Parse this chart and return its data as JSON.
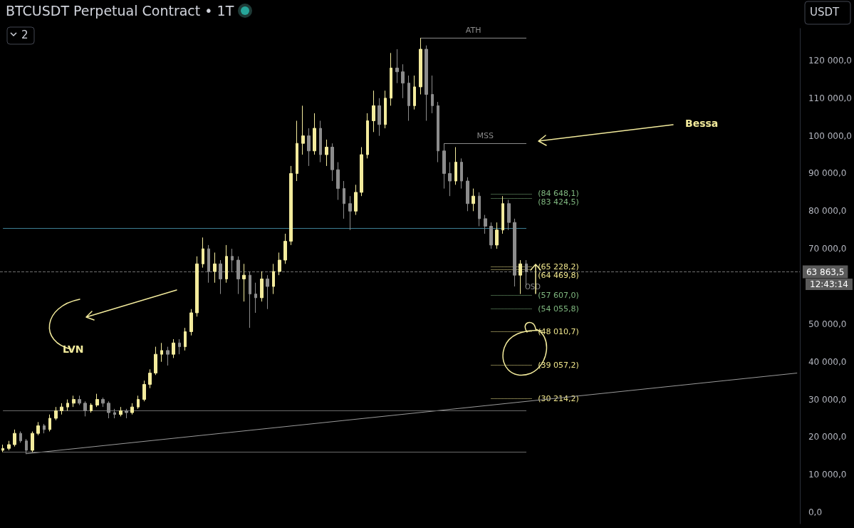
{
  "chart_data": {
    "type": "candlestick",
    "title": "BTCUSDT Perpetual Contract • 1T",
    "categories": [
      null,
      null,
      null,
      null,
      null,
      null,
      null,
      null,
      null,
      null,
      null,
      null,
      null,
      null,
      null,
      null,
      null,
      null,
      null,
      null,
      null,
      null,
      null,
      null,
      null,
      null,
      null,
      null,
      null,
      null,
      null,
      null,
      null,
      null,
      null,
      null,
      null,
      null,
      null,
      null,
      null,
      null,
      null,
      null,
      null,
      null,
      null,
      null,
      null,
      null,
      null,
      null,
      null,
      null,
      null,
      null,
      null,
      null,
      null,
      null,
      null,
      null,
      null,
      null,
      null,
      null,
      null,
      null,
      null,
      null,
      null,
      null,
      null,
      null,
      null,
      null,
      null,
      null,
      null,
      null,
      null,
      null,
      null,
      null,
      null,
      null,
      null,
      null,
      null,
      null,
      null,
      null,
      null,
      null,
      null,
      null,
      null,
      null,
      null,
      null,
      null,
      null,
      null,
      null,
      null,
      null,
      null,
      null,
      null,
      null,
      null,
      null,
      null,
      null,
      null,
      null,
      null,
      null,
      null,
      null,
      null,
      null,
      null,
      null,
      null,
      null,
      null,
      null,
      null,
      null,
      null,
      null,
      null,
      null,
      null,
      null
    ],
    "ohlc": [
      [
        16500,
        18000,
        16000,
        17000
      ],
      [
        17000,
        19000,
        16500,
        18000
      ],
      [
        18000,
        22000,
        17500,
        21000
      ],
      [
        21000,
        21500,
        18500,
        19000
      ],
      [
        19000,
        19500,
        15500,
        16500
      ],
      [
        16500,
        21500,
        16000,
        21000
      ],
      [
        21000,
        24000,
        20500,
        23000
      ],
      [
        23000,
        23500,
        21000,
        22000
      ],
      [
        22000,
        26000,
        21500,
        25000
      ],
      [
        25000,
        28000,
        24500,
        27000
      ],
      [
        27000,
        29000,
        26000,
        28000
      ],
      [
        28000,
        30000,
        27000,
        29000
      ],
      [
        29000,
        31000,
        28000,
        30000
      ],
      [
        30000,
        31000,
        28500,
        29000
      ],
      [
        29000,
        29500,
        25500,
        27000
      ],
      [
        27000,
        29000,
        26500,
        28500
      ],
      [
        28500,
        31500,
        28000,
        30000
      ],
      [
        30000,
        30500,
        28000,
        29000
      ],
      [
        29000,
        29500,
        25000,
        26500
      ],
      [
        26500,
        27500,
        25000,
        26000
      ],
      [
        26000,
        28000,
        25500,
        27000
      ],
      [
        27000,
        27500,
        25000,
        26500
      ],
      [
        26500,
        29000,
        26000,
        28000
      ],
      [
        28000,
        31000,
        27500,
        30000
      ],
      [
        30000,
        35000,
        29500,
        34000
      ],
      [
        34000,
        38000,
        33000,
        37000
      ],
      [
        37000,
        44000,
        36500,
        42000
      ],
      [
        42000,
        45000,
        40000,
        43000
      ],
      [
        43000,
        44000,
        39000,
        42000
      ],
      [
        42000,
        46000,
        41000,
        45000
      ],
      [
        45000,
        46000,
        42000,
        44000
      ],
      [
        44000,
        49000,
        43000,
        48000
      ],
      [
        48000,
        54000,
        47000,
        53000
      ],
      [
        53000,
        68000,
        52000,
        66000
      ],
      [
        66000,
        73000,
        65000,
        70000
      ],
      [
        70000,
        71000,
        61000,
        64000
      ],
      [
        64000,
        69000,
        61000,
        66000
      ],
      [
        66000,
        67000,
        58000,
        62000
      ],
      [
        62000,
        71000,
        61000,
        68000
      ],
      [
        68000,
        70000,
        64000,
        67000
      ],
      [
        67000,
        68000,
        58000,
        62000
      ],
      [
        62000,
        66000,
        56000,
        63000
      ],
      [
        63000,
        64000,
        49000,
        58000
      ],
      [
        58000,
        61000,
        53000,
        57000
      ],
      [
        57000,
        64000,
        56000,
        62000
      ],
      [
        62000,
        63000,
        54000,
        60000
      ],
      [
        60000,
        66000,
        58000,
        64000
      ],
      [
        64000,
        69000,
        63000,
        67000
      ],
      [
        67000,
        74000,
        66000,
        72000
      ],
      [
        72000,
        92000,
        71000,
        90000
      ],
      [
        90000,
        104000,
        88000,
        98000
      ],
      [
        98000,
        108000,
        95000,
        100000
      ],
      [
        100000,
        102000,
        92000,
        96000
      ],
      [
        96000,
        106000,
        95000,
        102000
      ],
      [
        102000,
        104000,
        93000,
        95000
      ],
      [
        95000,
        99000,
        92000,
        97000
      ],
      [
        97000,
        98000,
        88000,
        91000
      ],
      [
        91000,
        93000,
        83000,
        86000
      ],
      [
        86000,
        88000,
        78000,
        82000
      ],
      [
        82000,
        84000,
        75000,
        80000
      ],
      [
        80000,
        87000,
        79000,
        85000
      ],
      [
        85000,
        97000,
        84000,
        95000
      ],
      [
        95000,
        106000,
        94000,
        104000
      ],
      [
        104000,
        112000,
        101000,
        108000
      ],
      [
        108000,
        110000,
        100000,
        103000
      ],
      [
        103000,
        112000,
        102000,
        110000
      ],
      [
        110000,
        122000,
        108000,
        118000
      ],
      [
        118000,
        123000,
        114000,
        117000
      ],
      [
        117000,
        119000,
        110000,
        114000
      ],
      [
        114000,
        116000,
        104000,
        108000
      ],
      [
        108000,
        116000,
        107000,
        113000
      ],
      [
        113000,
        126000,
        111000,
        123000
      ],
      [
        123000,
        124000,
        104000,
        111000
      ],
      [
        111000,
        116000,
        106000,
        108000
      ],
      [
        108000,
        109000,
        93000,
        96000
      ],
      [
        96000,
        98000,
        86000,
        90000
      ],
      [
        90000,
        93000,
        84000,
        88000
      ],
      [
        88000,
        97000,
        87000,
        93000
      ],
      [
        93000,
        94000,
        86000,
        88000
      ],
      [
        88000,
        89000,
        80000,
        82000
      ],
      [
        82000,
        86000,
        80000,
        84000
      ],
      [
        84000,
        85000,
        76000,
        78000
      ],
      [
        78000,
        79000,
        74000,
        76000
      ],
      [
        76000,
        77000,
        70000,
        71000
      ],
      [
        71000,
        77000,
        70000,
        75000
      ],
      [
        75000,
        84000,
        74000,
        82000
      ],
      [
        82000,
        83000,
        75000,
        77000
      ],
      [
        77000,
        78000,
        60000,
        63000
      ],
      [
        63000,
        67000,
        58000,
        66000
      ],
      [
        66000,
        67000,
        60000,
        63900
      ],
      null,
      null,
      null,
      null,
      null,
      null,
      null,
      null,
      null,
      null,
      null,
      null,
      null,
      null,
      null,
      null,
      null,
      null,
      null,
      null,
      null,
      null,
      null,
      null,
      null,
      null,
      null,
      null,
      null,
      null,
      null,
      null,
      null,
      null,
      null,
      null,
      null,
      null,
      null,
      null,
      null,
      null,
      null,
      null,
      null,
      null
    ],
    "colors": [
      "#f3eb9c",
      "#f3eb9c",
      "#f3eb9c",
      "#8c8c8c",
      "#8c8c8c",
      "#f3eb9c",
      "#f3eb9c",
      "#8c8c8c",
      "#f3eb9c",
      "#f3eb9c",
      "#f3eb9c",
      "#f3eb9c",
      "#f3eb9c",
      "#8c8c8c",
      "#8c8c8c",
      "#f3eb9c",
      "#f3eb9c",
      "#8c8c8c",
      "#8c8c8c",
      "#8c8c8c",
      "#f3eb9c",
      "#8c8c8c",
      "#f3eb9c",
      "#f3eb9c",
      "#f3eb9c",
      "#f3eb9c",
      "#f3eb9c",
      "#f3eb9c",
      "#8c8c8c",
      "#f3eb9c",
      "#8c8c8c",
      "#f3eb9c",
      "#f3eb9c",
      "#f3eb9c",
      "#f3eb9c",
      "#8c8c8c",
      "#f3eb9c",
      "#8c8c8c",
      "#f3eb9c",
      "#8c8c8c",
      "#8c8c8c",
      "#f3eb9c",
      "#8c8c8c",
      "#8c8c8c",
      "#f3eb9c",
      "#8c8c8c",
      "#f3eb9c",
      "#f3eb9c",
      "#f3eb9c",
      "#f3eb9c",
      "#f3eb9c",
      "#f3eb9c",
      "#8c8c8c",
      "#f3eb9c",
      "#8c8c8c",
      "#f3eb9c",
      "#8c8c8c",
      "#8c8c8c",
      "#8c8c8c",
      "#8c8c8c",
      "#f3eb9c",
      "#f3eb9c",
      "#f3eb9c",
      "#f3eb9c",
      "#8c8c8c",
      "#f3eb9c",
      "#f3eb9c",
      "#8c8c8c",
      "#8c8c8c",
      "#8c8c8c",
      "#f3eb9c",
      "#f3eb9c",
      "#8c8c8c",
      "#8c8c8c",
      "#8c8c8c",
      "#8c8c8c",
      "#8c8c8c",
      "#f3eb9c",
      "#8c8c8c",
      "#8c8c8c",
      "#f3eb9c",
      "#8c8c8c",
      "#8c8c8c",
      "#8c8c8c",
      "#f3eb9c",
      "#f3eb9c",
      "#8c8c8c",
      "#8c8c8c",
      "#f3eb9c",
      "#8c8c8c",
      null,
      null,
      null,
      null,
      null,
      null,
      null,
      null,
      null,
      null,
      null,
      null,
      null,
      null,
      null,
      null,
      null,
      null,
      null,
      null,
      null,
      null,
      null,
      null,
      null,
      null,
      null,
      null,
      null,
      null,
      null,
      null,
      null,
      null,
      null,
      null,
      null,
      null,
      null,
      null,
      null,
      null,
      null,
      null,
      null,
      null
    ],
    "series": [
      {
        "type": "line",
        "color": "#9a9a9a",
        "values": [
          null,
          null,
          null,
          null,
          15600,
          null,
          null,
          null,
          null,
          null,
          null,
          null,
          null,
          null,
          null,
          null,
          null,
          null,
          null,
          null,
          null,
          null,
          null,
          null,
          null,
          null,
          null,
          null,
          null,
          null,
          null,
          null,
          null,
          null,
          null,
          null,
          null,
          null,
          null,
          null,
          null,
          null,
          null,
          null,
          null,
          null,
          null,
          null,
          null,
          null,
          null,
          null,
          null,
          null,
          null,
          null,
          null,
          null,
          null,
          null,
          null,
          null,
          null,
          null,
          null,
          null,
          null,
          null,
          null,
          null,
          null,
          null,
          null,
          null,
          null,
          null,
          null,
          null,
          null,
          null,
          null,
          null,
          null,
          null,
          null,
          null,
          null,
          null,
          null,
          null,
          null,
          null,
          null,
          null,
          null,
          null,
          null,
          null,
          null,
          null,
          null,
          null,
          null,
          null,
          null,
          null,
          null,
          null,
          null,
          null,
          null,
          null,
          null,
          null,
          null,
          null,
          null,
          null,
          null,
          null,
          null,
          null,
          null,
          null,
          null,
          null,
          null,
          null,
          null,
          null,
          null,
          null,
          null,
          null,
          null,
          37000
        ]
      }
    ],
    "marker": "none",
    "line_style": "solid",
    "ylim": [
      -3000,
      128500
    ],
    "yticks": [
      {
        "value": 0,
        "label": "0,0"
      },
      {
        "value": 10000,
        "label": "10 000,0"
      },
      {
        "value": 20000,
        "label": "20 000,0"
      },
      {
        "value": 30000,
        "label": "30 000,0"
      },
      {
        "value": 40000,
        "label": "40 000,0"
      },
      {
        "value": 50000,
        "label": "50 000,0"
      },
      {
        "value": 70000,
        "label": "70 000,0"
      },
      {
        "value": 80000,
        "label": "80 000,0"
      },
      {
        "value": 90000,
        "label": "90 000,0"
      },
      {
        "value": 100000,
        "label": "100 000,0"
      },
      {
        "value": 110000,
        "label": "110 000,0"
      },
      {
        "value": 120000,
        "label": "120 000,0"
      }
    ],
    "ref_lines": [
      {
        "axis": "y",
        "value": 126000,
        "label": "ATH",
        "color": "#8a8a8a",
        "line_style": "solid"
      },
      {
        "axis": "y",
        "value": 98000,
        "label": "MSS",
        "color": "#8a8a8a",
        "line_style": "solid"
      },
      {
        "axis": "y",
        "value": 75500,
        "label": null,
        "color": "#3d7f94",
        "line_style": "solid"
      },
      {
        "axis": "y",
        "value": 27000,
        "label": null,
        "color": "#6a6a6a",
        "line_style": "solid"
      },
      {
        "axis": "y",
        "value": 16000,
        "label": null,
        "color": "#6a6a6a",
        "line_style": "solid"
      },
      {
        "axis": "y",
        "value": 84648.1,
        "label": "(84 648,1)",
        "color": "#7fb77f",
        "line_style": "dotted"
      },
      {
        "axis": "y",
        "value": 83424.5,
        "label": "(83 424,5)",
        "color": "#7fb77f",
        "line_style": "dotted"
      },
      {
        "axis": "y",
        "value": 65228.2,
        "label": "(65 228,2)",
        "color": "#f0e68c",
        "line_style": "dotted"
      },
      {
        "axis": "y",
        "value": 64469.8,
        "label": "(64 469,8)",
        "color": "#f0e68c",
        "line_style": "dotted"
      },
      {
        "axis": "y",
        "value": 57607.0,
        "label": "(57 607,0)",
        "color": "#7fb77f",
        "line_style": "dotted"
      },
      {
        "axis": "y",
        "value": 54055.8,
        "label": "(54 055,8)",
        "color": "#7fb77f",
        "line_style": "dotted"
      },
      {
        "axis": "y",
        "value": 48010.7,
        "label": "(48 010,7)",
        "color": "#f0e68c",
        "line_style": "dotted"
      },
      {
        "axis": "y",
        "value": 39057.2,
        "label": "(39 057,2)",
        "color": "#f0e68c",
        "line_style": "dotted"
      },
      {
        "axis": "y",
        "value": 30214.2,
        "label": "(30 214,2)",
        "color": "#f0e68c",
        "line_style": "dotted"
      },
      {
        "axis": "y",
        "value": 63863.5,
        "label": "63 863,5",
        "color": "#6f6f6f",
        "line_style": "dashed"
      }
    ],
    "annotations": [
      "Bessa",
      "LVN",
      "OSD",
      "12:43:14",
      "2",
      "USDT"
    ],
    "grid": false,
    "tick_labels": "y"
  }
}
